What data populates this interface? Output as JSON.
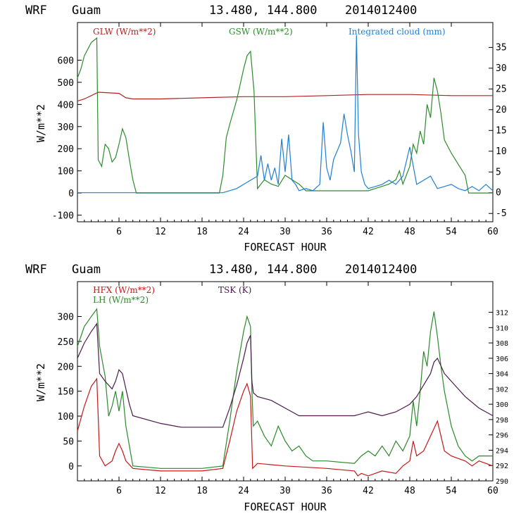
{
  "colors": {
    "glw": "#b22222",
    "gsw": "#2e8b2e",
    "cloud": "#1e7fd6",
    "hfx": "#c41818",
    "lh": "#2a8a2a",
    "tsk": "#4b1a4b"
  },
  "chart_data": [
    {
      "type": "line",
      "header": {
        "model": "WRF",
        "location": "Guam",
        "coords": "13.480, 144.800",
        "init": "2014012400"
      },
      "xlabel": "FORECAST HOUR",
      "ylabel": "W/m**2",
      "xlim": [
        0,
        60
      ],
      "ylim": [
        -130,
        770
      ],
      "y2lim": [
        -7,
        41
      ],
      "xticks": [
        "6",
        "12",
        "18",
        "24",
        "30",
        "36",
        "42",
        "48",
        "54",
        "60"
      ],
      "yticks": [
        "-100",
        "0",
        "100",
        "200",
        "300",
        "400",
        "500",
        "600"
      ],
      "y2ticks": [
        "-5",
        "0",
        "5",
        "10",
        "15",
        "20",
        "25",
        "30",
        "35"
      ],
      "series": [
        {
          "name": "GLW (W/m**2)",
          "axis": "left",
          "x": [
            0,
            1,
            2,
            3,
            6,
            7,
            8,
            12,
            18,
            24,
            30,
            36,
            42,
            48,
            54,
            60
          ],
          "values": [
            415,
            425,
            440,
            455,
            450,
            430,
            425,
            425,
            430,
            435,
            435,
            440,
            445,
            445,
            440,
            440
          ]
        },
        {
          "name": "GSW (W/m**2)",
          "axis": "left",
          "x": [
            0,
            0.5,
            1,
            2,
            2.8,
            3,
            3.5,
            4,
            4.5,
            5,
            5.5,
            6,
            6.5,
            7,
            7.5,
            8,
            8.5,
            20.5,
            21,
            21.5,
            22,
            23,
            24,
            24.5,
            25,
            25.5,
            26,
            27,
            28,
            29,
            30,
            31,
            32,
            33,
            42,
            43,
            44,
            45,
            46,
            46.5,
            47,
            47.5,
            48,
            48.5,
            49,
            49.5,
            50,
            50.5,
            51,
            51.5,
            52,
            52.5,
            53,
            54,
            55,
            56,
            56.5,
            60
          ],
          "values": [
            520,
            560,
            620,
            680,
            700,
            150,
            120,
            220,
            200,
            140,
            160,
            220,
            290,
            250,
            150,
            60,
            0,
            0,
            80,
            250,
            310,
            420,
            560,
            620,
            640,
            460,
            20,
            60,
            40,
            30,
            80,
            60,
            40,
            10,
            10,
            20,
            30,
            40,
            60,
            100,
            40,
            80,
            120,
            220,
            180,
            280,
            220,
            400,
            340,
            520,
            460,
            360,
            240,
            180,
            130,
            80,
            0,
            0
          ]
        },
        {
          "name": "Integrated cloud (mm)",
          "axis": "right",
          "x": [
            0,
            21,
            22,
            23,
            24,
            25,
            26,
            26.5,
            27,
            27.5,
            28,
            28.5,
            29,
            29.5,
            30,
            30.5,
            31,
            31.5,
            32,
            33,
            34,
            35,
            35.5,
            36,
            36.5,
            37,
            38,
            38.5,
            39,
            39.5,
            40,
            40.3,
            40.6,
            41,
            41.5,
            42,
            43,
            44,
            45,
            46,
            47,
            48,
            49,
            50,
            51,
            52,
            53,
            54,
            55,
            56,
            57,
            58,
            59,
            60
          ],
          "values": [
            0,
            0,
            0.5,
            1,
            2,
            3,
            4,
            9,
            3,
            7,
            3,
            6,
            2,
            13,
            5,
            14,
            3,
            2,
            0.5,
            1,
            0.5,
            2,
            17,
            6,
            3,
            8,
            12,
            19,
            14,
            10,
            5,
            38,
            14,
            5,
            2,
            1,
            1.5,
            2,
            3,
            2,
            4,
            11,
            2,
            3,
            4,
            1,
            1.5,
            2,
            1,
            0.5,
            1.5,
            0.5,
            2,
            0.5
          ]
        }
      ]
    },
    {
      "type": "line",
      "header": {
        "model": "WRF",
        "location": "Guam",
        "coords": "13.480, 144.800",
        "init": "2014012400"
      },
      "xlabel": "FORECAST HOUR",
      "ylabel": "W/m**2",
      "xlim": [
        0,
        60
      ],
      "ylim": [
        -30,
        370
      ],
      "y2lim": [
        290,
        316
      ],
      "xticks": [
        "6",
        "12",
        "18",
        "24",
        "30",
        "36",
        "42",
        "48",
        "54",
        "60"
      ],
      "yticks": [
        "0",
        "50",
        "100",
        "150",
        "200",
        "250",
        "300"
      ],
      "y2ticks": [
        "290",
        "292",
        "294",
        "296",
        "298",
        "300",
        "302",
        "304",
        "306",
        "308",
        "310",
        "312"
      ],
      "series": [
        {
          "name": "HFX (W/m**2)",
          "axis": "left",
          "x": [
            0,
            1,
            2,
            2.8,
            3.2,
            4,
            5,
            5.5,
            6,
            6.5,
            7,
            8,
            12,
            18,
            21,
            22,
            23,
            24,
            24.5,
            25,
            25.3,
            26,
            30,
            36,
            40,
            40.5,
            41,
            42,
            44,
            46,
            47,
            48,
            48.5,
            49,
            50,
            50.5,
            51,
            52,
            52.5,
            53,
            54,
            55,
            56,
            57,
            58,
            59,
            60
          ],
          "values": [
            70,
            120,
            160,
            175,
            20,
            0,
            10,
            30,
            45,
            30,
            10,
            -5,
            -10,
            -10,
            -5,
            50,
            110,
            150,
            165,
            140,
            -5,
            5,
            0,
            -5,
            -10,
            -20,
            -15,
            -20,
            -10,
            -15,
            0,
            10,
            50,
            20,
            30,
            45,
            60,
            90,
            60,
            30,
            20,
            15,
            10,
            0,
            10,
            5,
            0
          ]
        },
        {
          "name": "LH (W/m**2)",
          "axis": "left",
          "x": [
            0,
            1,
            2,
            2.8,
            3.2,
            4,
            4.5,
            5,
            5.5,
            6,
            6.5,
            7,
            7.5,
            8,
            12,
            18,
            21,
            22,
            23,
            24,
            24.5,
            25,
            25.2,
            25.4,
            26,
            27,
            28,
            29,
            30,
            31,
            32,
            33,
            34,
            36,
            40,
            41,
            42,
            43,
            44,
            45,
            46,
            47,
            48,
            48.5,
            49,
            49.5,
            50,
            50.5,
            51,
            51.5,
            52,
            52.5,
            53,
            54,
            55,
            56,
            57,
            58,
            60
          ],
          "values": [
            240,
            280,
            300,
            315,
            240,
            180,
            100,
            120,
            150,
            110,
            150,
            80,
            40,
            0,
            -5,
            -5,
            0,
            90,
            190,
            270,
            300,
            280,
            150,
            80,
            90,
            60,
            40,
            80,
            50,
            30,
            40,
            20,
            10,
            10,
            5,
            20,
            30,
            20,
            40,
            20,
            50,
            30,
            60,
            130,
            80,
            150,
            230,
            200,
            270,
            310,
            260,
            200,
            150,
            80,
            40,
            20,
            10,
            20,
            20
          ]
        },
        {
          "name": "TSK (K)",
          "axis": "right",
          "x": [
            0,
            1,
            2,
            2.8,
            3.2,
            4,
            5,
            5.5,
            6,
            6.5,
            7,
            7.5,
            8,
            12,
            15,
            18,
            21,
            22,
            23,
            24,
            24.5,
            25,
            25.2,
            25.4,
            26,
            28,
            30,
            32,
            34,
            36,
            40,
            42,
            44,
            46,
            47,
            48,
            48.5,
            49,
            50,
            51,
            51.5,
            52,
            52.5,
            53,
            54,
            55,
            56,
            58,
            60
          ],
          "values": [
            306,
            308,
            309.5,
            310.5,
            304,
            303,
            302,
            303,
            304.5,
            304,
            302,
            300,
            298.5,
            297.5,
            297,
            297,
            297,
            299.5,
            302.5,
            306,
            308,
            309,
            303,
            301.5,
            301,
            300.5,
            299.5,
            298.5,
            298.5,
            298.5,
            298.5,
            299,
            298.5,
            299,
            299.5,
            300,
            300.5,
            301,
            302.5,
            304,
            305.5,
            306,
            305,
            304,
            303,
            302,
            301,
            299.5,
            298.5
          ]
        }
      ]
    }
  ]
}
